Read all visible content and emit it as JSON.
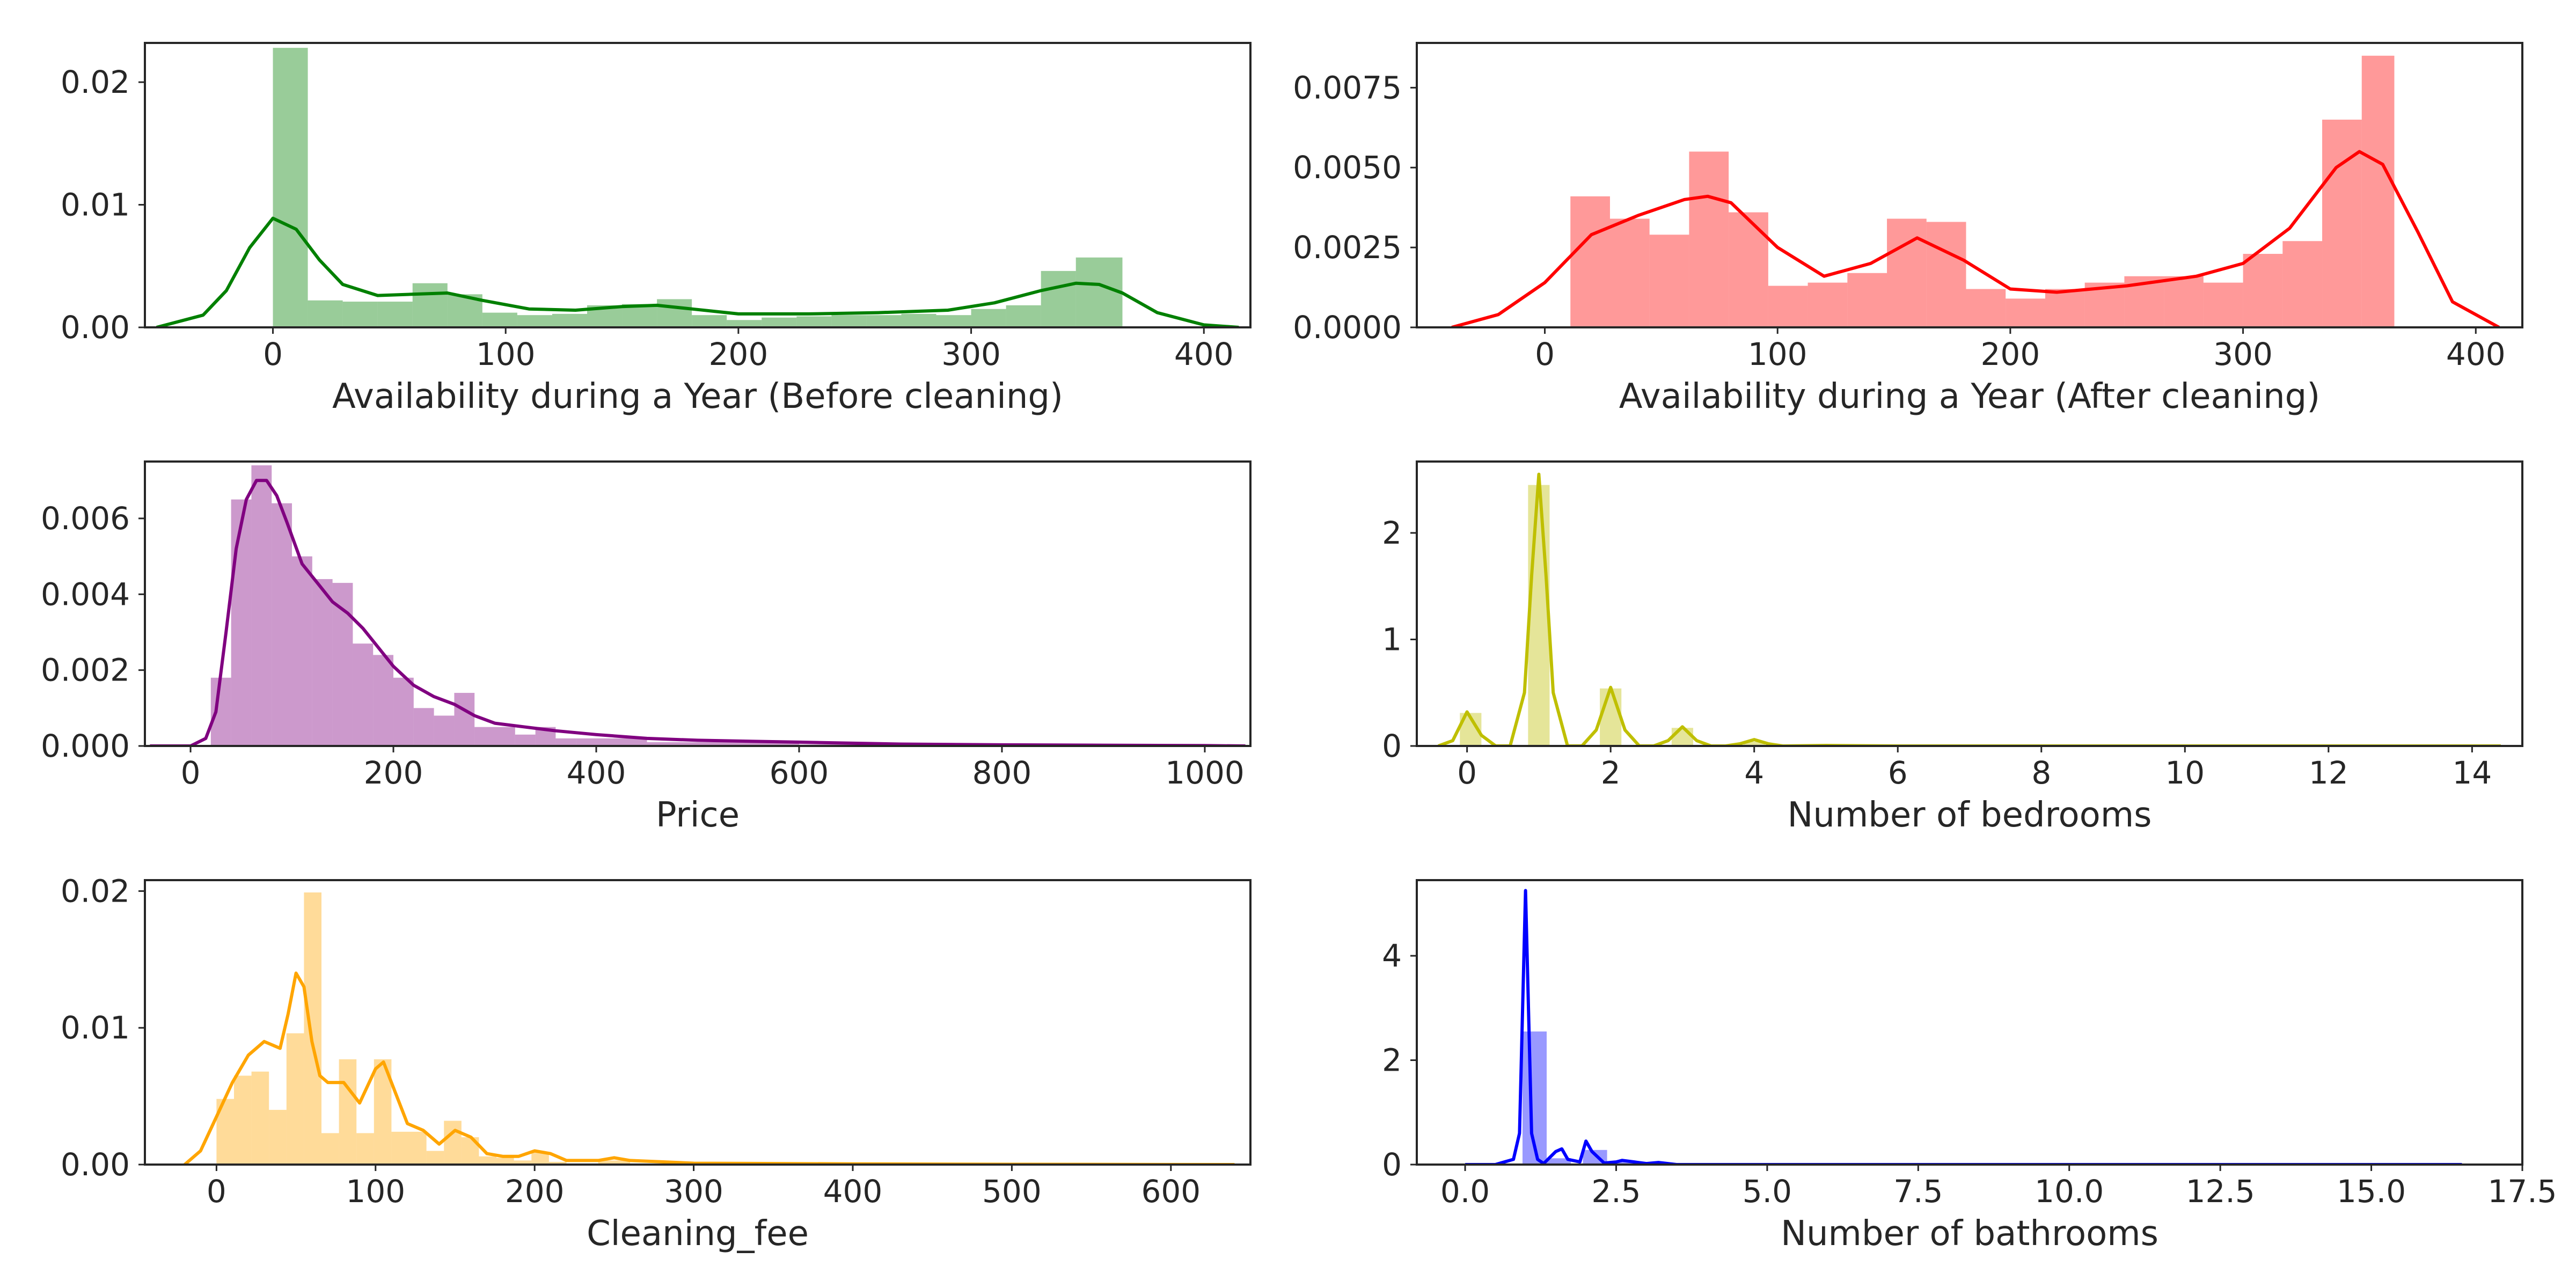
{
  "chart_data": [
    {
      "type": "histogram",
      "xlabel": "Availability during a Year (Before cleaning)",
      "ylabel": "",
      "color": "#008000",
      "xlim": [
        -55,
        420
      ],
      "ylim": [
        0,
        0.0232
      ],
      "xticks": [
        0,
        100,
        200,
        300,
        400
      ],
      "xtick_labels": [
        "0",
        "100",
        "200",
        "300",
        "400"
      ],
      "yticks": [
        0,
        0.01,
        0.02
      ],
      "ytick_labels": [
        "0.00",
        "0.01",
        "0.02"
      ],
      "bins": [
        {
          "x0": 0,
          "x1": 15,
          "h": 0.0228
        },
        {
          "x0": 15,
          "x1": 30,
          "h": 0.0022
        },
        {
          "x0": 30,
          "x1": 45,
          "h": 0.0021
        },
        {
          "x0": 45,
          "x1": 60,
          "h": 0.0021
        },
        {
          "x0": 60,
          "x1": 75,
          "h": 0.0036
        },
        {
          "x0": 75,
          "x1": 90,
          "h": 0.0027
        },
        {
          "x0": 90,
          "x1": 105,
          "h": 0.0012
        },
        {
          "x0": 105,
          "x1": 120,
          "h": 0.001
        },
        {
          "x0": 120,
          "x1": 135,
          "h": 0.0011
        },
        {
          "x0": 135,
          "x1": 150,
          "h": 0.0018
        },
        {
          "x0": 150,
          "x1": 165,
          "h": 0.0019
        },
        {
          "x0": 165,
          "x1": 180,
          "h": 0.0023
        },
        {
          "x0": 180,
          "x1": 195,
          "h": 0.001
        },
        {
          "x0": 195,
          "x1": 210,
          "h": 0.0006
        },
        {
          "x0": 210,
          "x1": 225,
          "h": 0.0008
        },
        {
          "x0": 225,
          "x1": 240,
          "h": 0.0009
        },
        {
          "x0": 240,
          "x1": 255,
          "h": 0.001
        },
        {
          "x0": 255,
          "x1": 270,
          "h": 0.001
        },
        {
          "x0": 270,
          "x1": 285,
          "h": 0.0011
        },
        {
          "x0": 285,
          "x1": 300,
          "h": 0.001
        },
        {
          "x0": 300,
          "x1": 315,
          "h": 0.0015
        },
        {
          "x0": 315,
          "x1": 330,
          "h": 0.0018
        },
        {
          "x0": 330,
          "x1": 345,
          "h": 0.0046
        },
        {
          "x0": 345,
          "x1": 365,
          "h": 0.0057
        }
      ],
      "kde": {
        "x": [
          -50,
          -30,
          -20,
          -10,
          0,
          10,
          20,
          30,
          45,
          60,
          75,
          90,
          110,
          130,
          150,
          165,
          180,
          200,
          230,
          260,
          290,
          310,
          330,
          345,
          355,
          365,
          380,
          400,
          415
        ],
        "y": [
          0.0,
          0.001,
          0.003,
          0.0065,
          0.0089,
          0.008,
          0.0055,
          0.0035,
          0.0026,
          0.0027,
          0.0028,
          0.0022,
          0.0015,
          0.0014,
          0.0017,
          0.0018,
          0.0015,
          0.0011,
          0.0011,
          0.0012,
          0.0014,
          0.002,
          0.003,
          0.0036,
          0.0035,
          0.0028,
          0.0012,
          0.0002,
          0.0
        ]
      }
    },
    {
      "type": "histogram",
      "xlabel": "Availability during a Year (After cleaning)",
      "ylabel": "",
      "color": "#ff0000",
      "xlim": [
        -55,
        420
      ],
      "ylim": [
        0,
        0.0089
      ],
      "xticks": [
        0,
        100,
        200,
        300,
        400
      ],
      "xtick_labels": [
        "0",
        "100",
        "200",
        "300",
        "400"
      ],
      "yticks": [
        0,
        0.0025,
        0.005,
        0.0075
      ],
      "ytick_labels": [
        "0.0000",
        "0.0025",
        "0.0050",
        "0.0075"
      ],
      "bins": [
        {
          "x0": 11,
          "x1": 28,
          "h": 0.0041
        },
        {
          "x0": 28,
          "x1": 45,
          "h": 0.0034
        },
        {
          "x0": 45,
          "x1": 62,
          "h": 0.0029
        },
        {
          "x0": 62,
          "x1": 79,
          "h": 0.0055
        },
        {
          "x0": 79,
          "x1": 96,
          "h": 0.0036
        },
        {
          "x0": 96,
          "x1": 113,
          "h": 0.0013
        },
        {
          "x0": 113,
          "x1": 130,
          "h": 0.0014
        },
        {
          "x0": 130,
          "x1": 147,
          "h": 0.0017
        },
        {
          "x0": 147,
          "x1": 164,
          "h": 0.0034
        },
        {
          "x0": 164,
          "x1": 181,
          "h": 0.0033
        },
        {
          "x0": 181,
          "x1": 198,
          "h": 0.0012
        },
        {
          "x0": 198,
          "x1": 215,
          "h": 0.0009
        },
        {
          "x0": 215,
          "x1": 232,
          "h": 0.0012
        },
        {
          "x0": 232,
          "x1": 249,
          "h": 0.0014
        },
        {
          "x0": 249,
          "x1": 266,
          "h": 0.0016
        },
        {
          "x0": 266,
          "x1": 283,
          "h": 0.0016
        },
        {
          "x0": 283,
          "x1": 300,
          "h": 0.0014
        },
        {
          "x0": 300,
          "x1": 317,
          "h": 0.0023
        },
        {
          "x0": 317,
          "x1": 334,
          "h": 0.0027
        },
        {
          "x0": 334,
          "x1": 351,
          "h": 0.0065
        },
        {
          "x0": 351,
          "x1": 365,
          "h": 0.0085
        }
      ],
      "kde": {
        "x": [
          -40,
          -20,
          0,
          20,
          40,
          60,
          70,
          80,
          100,
          120,
          140,
          160,
          180,
          200,
          220,
          250,
          280,
          300,
          320,
          340,
          350,
          360,
          375,
          390,
          410
        ],
        "y": [
          0.0,
          0.0004,
          0.0014,
          0.0029,
          0.0035,
          0.004,
          0.0041,
          0.0039,
          0.0025,
          0.0016,
          0.002,
          0.0028,
          0.0021,
          0.0012,
          0.0011,
          0.0013,
          0.0016,
          0.002,
          0.0031,
          0.005,
          0.0055,
          0.0051,
          0.003,
          0.0008,
          0.0
        ]
      }
    },
    {
      "type": "histogram",
      "xlabel": "Price",
      "ylabel": "",
      "color": "#800080",
      "xlim": [
        -45,
        1045
      ],
      "ylim": [
        0,
        0.0075
      ],
      "xticks": [
        0,
        200,
        400,
        600,
        800,
        1000
      ],
      "xtick_labels": [
        "0",
        "200",
        "400",
        "600",
        "800",
        "1000"
      ],
      "yticks": [
        0,
        0.002,
        0.004,
        0.006
      ],
      "ytick_labels": [
        "0.000",
        "0.002",
        "0.004",
        "0.006"
      ],
      "bins": [
        {
          "x0": 20,
          "x1": 40,
          "h": 0.0018
        },
        {
          "x0": 40,
          "x1": 60,
          "h": 0.0065
        },
        {
          "x0": 60,
          "x1": 80,
          "h": 0.0074
        },
        {
          "x0": 80,
          "x1": 100,
          "h": 0.0064
        },
        {
          "x0": 100,
          "x1": 120,
          "h": 0.005
        },
        {
          "x0": 120,
          "x1": 140,
          "h": 0.0044
        },
        {
          "x0": 140,
          "x1": 160,
          "h": 0.0043
        },
        {
          "x0": 160,
          "x1": 180,
          "h": 0.0027
        },
        {
          "x0": 180,
          "x1": 200,
          "h": 0.0024
        },
        {
          "x0": 200,
          "x1": 220,
          "h": 0.0018
        },
        {
          "x0": 220,
          "x1": 240,
          "h": 0.001
        },
        {
          "x0": 240,
          "x1": 260,
          "h": 0.0008
        },
        {
          "x0": 260,
          "x1": 280,
          "h": 0.0014
        },
        {
          "x0": 280,
          "x1": 300,
          "h": 0.0005
        },
        {
          "x0": 300,
          "x1": 320,
          "h": 0.0005
        },
        {
          "x0": 320,
          "x1": 340,
          "h": 0.0003
        },
        {
          "x0": 340,
          "x1": 360,
          "h": 0.0005
        },
        {
          "x0": 360,
          "x1": 380,
          "h": 0.0002
        },
        {
          "x0": 380,
          "x1": 400,
          "h": 0.0002
        },
        {
          "x0": 400,
          "x1": 450,
          "h": 0.0002
        },
        {
          "x0": 450,
          "x1": 500,
          "h": 0.0001
        },
        {
          "x0": 500,
          "x1": 600,
          "h": 0.0001
        },
        {
          "x0": 600,
          "x1": 1000,
          "h": 4e-05
        }
      ],
      "kde": {
        "x": [
          -40,
          0,
          15,
          25,
          35,
          45,
          55,
          65,
          75,
          85,
          95,
          110,
          125,
          140,
          155,
          170,
          185,
          200,
          220,
          240,
          260,
          280,
          300,
          330,
          360,
          400,
          450,
          500,
          600,
          700,
          800,
          900,
          1000,
          1040
        ],
        "y": [
          0.0,
          0.0,
          0.0002,
          0.0009,
          0.003,
          0.0052,
          0.0065,
          0.007,
          0.007,
          0.0066,
          0.0059,
          0.0048,
          0.0043,
          0.0038,
          0.0035,
          0.0031,
          0.0026,
          0.0021,
          0.0016,
          0.0013,
          0.0011,
          0.0008,
          0.0006,
          0.0005,
          0.0004,
          0.0003,
          0.0002,
          0.00015,
          0.0001,
          5e-05,
          3e-05,
          2e-05,
          1e-05,
          0.0
        ]
      }
    },
    {
      "type": "histogram",
      "xlabel": "Number of bedrooms",
      "ylabel": "",
      "color": "#bfbf00",
      "xlim": [
        -0.7,
        14.7
      ],
      "ylim": [
        0,
        2.67
      ],
      "xticks": [
        0,
        2,
        4,
        6,
        8,
        10,
        12,
        14
      ],
      "xtick_labels": [
        "0",
        "2",
        "4",
        "6",
        "8",
        "10",
        "12",
        "14"
      ],
      "yticks": [
        0,
        1,
        2
      ],
      "ytick_labels": [
        "0",
        "1",
        "2"
      ],
      "bins": [
        {
          "x0": -0.1,
          "x1": 0.2,
          "h": 0.31
        },
        {
          "x0": 0.85,
          "x1": 1.15,
          "h": 2.45
        },
        {
          "x0": 1.85,
          "x1": 2.15,
          "h": 0.54
        },
        {
          "x0": 2.85,
          "x1": 3.15,
          "h": 0.17
        },
        {
          "x0": 3.85,
          "x1": 4.15,
          "h": 0.04
        }
      ],
      "kde": {
        "x": [
          -0.4,
          -0.2,
          0.0,
          0.2,
          0.4,
          0.6,
          0.8,
          0.9,
          1.0,
          1.1,
          1.2,
          1.4,
          1.6,
          1.8,
          2.0,
          2.2,
          2.4,
          2.6,
          2.8,
          3.0,
          3.2,
          3.4,
          3.6,
          3.8,
          4.0,
          4.2,
          4.4,
          5.0,
          6.0,
          8.0,
          10.0,
          12.0,
          14.4
        ],
        "y": [
          0.0,
          0.05,
          0.32,
          0.1,
          0.0,
          0.0,
          0.5,
          1.6,
          2.55,
          1.6,
          0.5,
          0.0,
          0.0,
          0.15,
          0.55,
          0.15,
          0.0,
          0.0,
          0.05,
          0.18,
          0.05,
          0.0,
          0.0,
          0.02,
          0.06,
          0.02,
          0.0,
          0.005,
          0.0,
          0.0,
          0.0,
          0.0,
          0.0
        ]
      }
    },
    {
      "type": "histogram",
      "xlabel": "Cleaning_fee",
      "ylabel": "",
      "color": "#ffa500",
      "xlim": [
        -45,
        650
      ],
      "ylim": [
        0,
        0.0208
      ],
      "xticks": [
        0,
        100,
        200,
        300,
        400,
        500,
        600
      ],
      "xtick_labels": [
        "0",
        "100",
        "200",
        "300",
        "400",
        "500",
        "600"
      ],
      "yticks": [
        0,
        0.01,
        0.02
      ],
      "ytick_labels": [
        "0.00",
        "0.01",
        "0.02"
      ],
      "bins": [
        {
          "x0": 0,
          "x1": 11,
          "h": 0.0048
        },
        {
          "x0": 11,
          "x1": 22,
          "h": 0.0065
        },
        {
          "x0": 22,
          "x1": 33,
          "h": 0.0068
        },
        {
          "x0": 33,
          "x1": 44,
          "h": 0.004
        },
        {
          "x0": 44,
          "x1": 55,
          "h": 0.0096
        },
        {
          "x0": 55,
          "x1": 66,
          "h": 0.0199
        },
        {
          "x0": 66,
          "x1": 77,
          "h": 0.0023
        },
        {
          "x0": 77,
          "x1": 88,
          "h": 0.0077
        },
        {
          "x0": 88,
          "x1": 99,
          "h": 0.0023
        },
        {
          "x0": 99,
          "x1": 110,
          "h": 0.0077
        },
        {
          "x0": 110,
          "x1": 121,
          "h": 0.0024
        },
        {
          "x0": 121,
          "x1": 132,
          "h": 0.0024
        },
        {
          "x0": 132,
          "x1": 143,
          "h": 0.001
        },
        {
          "x0": 143,
          "x1": 154,
          "h": 0.0032
        },
        {
          "x0": 154,
          "x1": 165,
          "h": 0.002
        },
        {
          "x0": 165,
          "x1": 176,
          "h": 0.0006
        },
        {
          "x0": 176,
          "x1": 187,
          "h": 0.0005
        },
        {
          "x0": 187,
          "x1": 198,
          "h": 0.0003
        },
        {
          "x0": 198,
          "x1": 209,
          "h": 0.0009
        },
        {
          "x0": 209,
          "x1": 220,
          "h": 0.0002
        },
        {
          "x0": 240,
          "x1": 260,
          "h": 0.0003
        },
        {
          "x0": 260,
          "x1": 640,
          "h": 4e-05
        }
      ],
      "kde": {
        "x": [
          -20,
          -10,
          0,
          10,
          20,
          30,
          40,
          45,
          50,
          55,
          60,
          65,
          70,
          80,
          90,
          100,
          105,
          110,
          120,
          130,
          140,
          150,
          160,
          170,
          180,
          190,
          200,
          210,
          220,
          240,
          250,
          260,
          280,
          300,
          400,
          500,
          640
        ],
        "y": [
          0.0,
          0.001,
          0.0035,
          0.006,
          0.008,
          0.009,
          0.0085,
          0.011,
          0.014,
          0.013,
          0.009,
          0.0065,
          0.006,
          0.006,
          0.0045,
          0.007,
          0.0075,
          0.006,
          0.003,
          0.0025,
          0.0015,
          0.0025,
          0.002,
          0.0008,
          0.0006,
          0.0006,
          0.001,
          0.0008,
          0.0003,
          0.0003,
          0.0005,
          0.0003,
          0.0002,
          0.0001,
          5e-05,
          2e-05,
          0.0
        ]
      }
    },
    {
      "type": "histogram",
      "xlabel": "Number of bathrooms",
      "ylabel": "",
      "color": "#0000ff",
      "xlim": [
        -0.8,
        17.5
      ],
      "ylim": [
        0,
        5.45
      ],
      "xticks": [
        0,
        2.5,
        5,
        7.5,
        10,
        12.5,
        15,
        17.5
      ],
      "xtick_labels": [
        "0.0",
        "2.5",
        "5.0",
        "7.5",
        "10.0",
        "12.5",
        "15.0",
        "17.5"
      ],
      "yticks": [
        0,
        2,
        4
      ],
      "ytick_labels": [
        "0",
        "2",
        "4"
      ],
      "bins": [
        {
          "x0": 0.95,
          "x1": 1.35,
          "h": 2.55
        },
        {
          "x0": 1.35,
          "x1": 1.75,
          "h": 0.12
        },
        {
          "x0": 1.95,
          "x1": 2.35,
          "h": 0.28
        },
        {
          "x0": 2.35,
          "x1": 3.2,
          "h": 0.05
        }
      ],
      "kde": {
        "x": [
          0.0,
          0.5,
          0.8,
          0.9,
          1.0,
          1.1,
          1.2,
          1.3,
          1.5,
          1.6,
          1.7,
          1.9,
          2.0,
          2.1,
          2.3,
          2.5,
          2.6,
          2.8,
          3.0,
          3.2,
          3.5,
          4.0,
          6.0,
          10.0,
          14.0,
          16.5
        ],
        "y": [
          0.0,
          0.0,
          0.1,
          0.6,
          5.25,
          0.6,
          0.1,
          0.02,
          0.25,
          0.3,
          0.1,
          0.05,
          0.45,
          0.25,
          0.03,
          0.05,
          0.08,
          0.05,
          0.02,
          0.04,
          0.0,
          0.0,
          0.0,
          0.0,
          0.0,
          0.0
        ]
      }
    }
  ]
}
